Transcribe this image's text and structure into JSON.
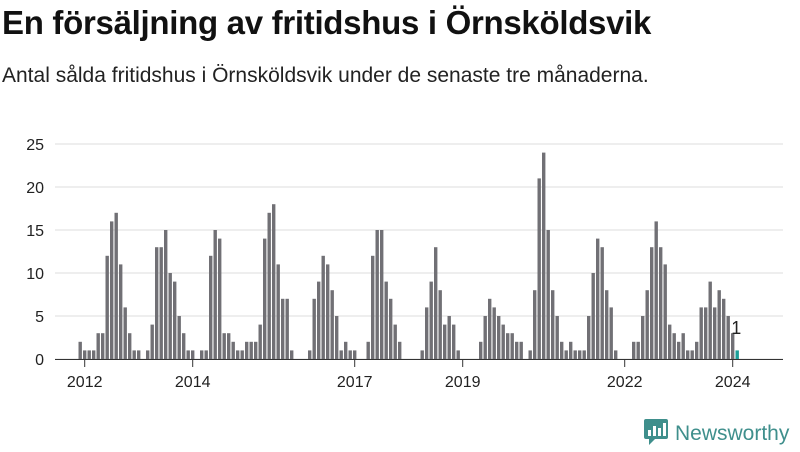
{
  "title": "En försäljning av fritidshus i Örnsköldsvik",
  "subtitle": "Antal sålda fritidshus i Örnsköldsvik under de senaste tre månaderna.",
  "brand": {
    "name": "Newsworthy",
    "logo_icon": "newsworthy-logo-icon"
  },
  "colors": {
    "bar": "#717075",
    "highlight": "#1a9e98",
    "grid": "#dcdcdc",
    "text": "#222222",
    "brand": "#3f8f8c"
  },
  "chart_data": {
    "type": "bar",
    "title": "En försäljning av fritidshus i Örnsköldsvik",
    "subtitle": "Antal sålda fritidshus i Örnsköldsvik under de senaste tre månaderna.",
    "xlabel": "",
    "ylabel": "",
    "ylim": [
      0,
      25
    ],
    "yticks": [
      0,
      5,
      10,
      15,
      20,
      25
    ],
    "xticks": [
      "2012",
      "2014",
      "2017",
      "2019",
      "2022",
      "2024"
    ],
    "grid": true,
    "period_start": "2011-09",
    "period_end": "2024-05",
    "frequency": "monthly",
    "last_value_label": "1",
    "values": [
      null,
      null,
      null,
      2,
      1,
      1,
      1,
      3,
      3,
      12,
      16,
      17,
      11,
      6,
      3,
      1,
      1,
      null,
      1,
      4,
      13,
      13,
      15,
      10,
      9,
      5,
      3,
      1,
      1,
      null,
      1,
      1,
      12,
      15,
      14,
      3,
      3,
      2,
      1,
      1,
      2,
      2,
      2,
      4,
      14,
      17,
      18,
      11,
      7,
      7,
      1,
      null,
      null,
      null,
      1,
      7,
      9,
      12,
      11,
      8,
      5,
      1,
      2,
      1,
      1,
      null,
      null,
      2,
      12,
      15,
      15,
      9,
      7,
      4,
      2,
      null,
      null,
      null,
      null,
      1,
      6,
      9,
      13,
      8,
      4,
      5,
      4,
      1,
      null,
      null,
      null,
      null,
      2,
      5,
      7,
      6,
      5,
      4,
      3,
      3,
      2,
      2,
      null,
      1,
      8,
      21,
      24,
      15,
      8,
      5,
      2,
      1,
      2,
      1,
      1,
      1,
      5,
      10,
      14,
      13,
      8,
      6,
      1,
      null,
      null,
      null,
      2,
      2,
      5,
      8,
      13,
      16,
      13,
      11,
      4,
      3,
      2,
      3,
      1,
      1,
      2,
      6,
      6,
      9,
      6,
      8,
      7,
      5,
      3,
      1
    ]
  }
}
